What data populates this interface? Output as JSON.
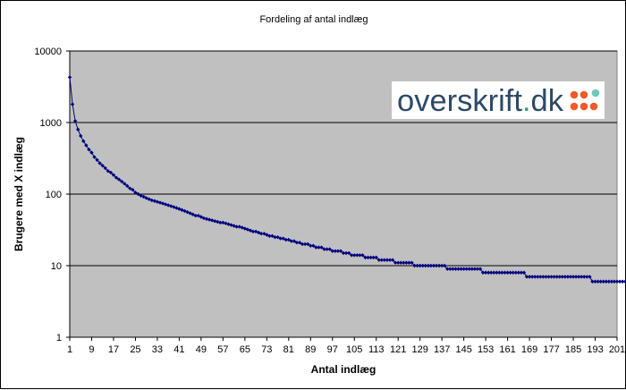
{
  "chart_data": {
    "type": "line",
    "title": "Fordeling af antal indlæg",
    "xlabel": "Antal indlæg",
    "ylabel": "Brugere med X indlæg",
    "yscale": "log",
    "ylim": [
      1,
      10000
    ],
    "xlim": [
      1,
      201
    ],
    "grid": "major horizontal",
    "legend": "none",
    "y_tick_labels": [
      "1",
      "10",
      "100",
      "1000",
      "10000"
    ],
    "x_tick_labels": [
      "1",
      "9",
      "17",
      "25",
      "33",
      "41",
      "49",
      "57",
      "65",
      "73",
      "81",
      "89",
      "97",
      "105",
      "113",
      "121",
      "129",
      "137",
      "145",
      "153",
      "161",
      "169",
      "177",
      "185",
      "193",
      "201"
    ],
    "series": [
      {
        "marker": "diamond",
        "x_start": 1,
        "x_step": 1,
        "values": [
          4300,
          1800,
          1050,
          800,
          650,
          550,
          480,
          420,
          380,
          330,
          300,
          270,
          250,
          230,
          210,
          200,
          185,
          170,
          160,
          150,
          140,
          130,
          120,
          115,
          105,
          100,
          95,
          92,
          88,
          85,
          82,
          80,
          78,
          76,
          74,
          72,
          70,
          68,
          66,
          64,
          62,
          60,
          58,
          56,
          54,
          52,
          50,
          50,
          48,
          46,
          45,
          44,
          43,
          42,
          41,
          40,
          40,
          39,
          38,
          37,
          36,
          35,
          35,
          34,
          33,
          32,
          31,
          30,
          30,
          29,
          28,
          28,
          27,
          26,
          26,
          25,
          25,
          24,
          24,
          23,
          23,
          22,
          22,
          21,
          21,
          20,
          20,
          20,
          19,
          19,
          18,
          18,
          18,
          17,
          17,
          17,
          16,
          16,
          16,
          16,
          15,
          15,
          15,
          14,
          14,
          14,
          14,
          14,
          13,
          13,
          13,
          13,
          13,
          12,
          12,
          12,
          12,
          12,
          12,
          11,
          11,
          11,
          11,
          11,
          11,
          11,
          10,
          10,
          10,
          10,
          10,
          10,
          10,
          10,
          10,
          10,
          10,
          10,
          9,
          9,
          9,
          9,
          9,
          9,
          9,
          9,
          9,
          9,
          9,
          9,
          9,
          8,
          8,
          8,
          8,
          8,
          8,
          8,
          8,
          8,
          8,
          8,
          8,
          8,
          8,
          8,
          8,
          7,
          7,
          7,
          7,
          7,
          7,
          7,
          7,
          7,
          7,
          7,
          7,
          7,
          7,
          7,
          7,
          7,
          7,
          7,
          7,
          7,
          7,
          7,
          7,
          6,
          6,
          6,
          6,
          6,
          6,
          6,
          6,
          6,
          6,
          6,
          6,
          6,
          6
        ]
      }
    ],
    "colors": {
      "series": "#000080",
      "plot_background": "#c0c0c0",
      "gridline": "#000000"
    }
  },
  "logo": {
    "word": "overskrift",
    "dot": ".",
    "tld": "dk",
    "colors": {
      "word": "#2c4a66",
      "dot": "#3a9a7a",
      "dots_red": "#f05a28",
      "dots_teal": "#6fc8b8"
    }
  }
}
